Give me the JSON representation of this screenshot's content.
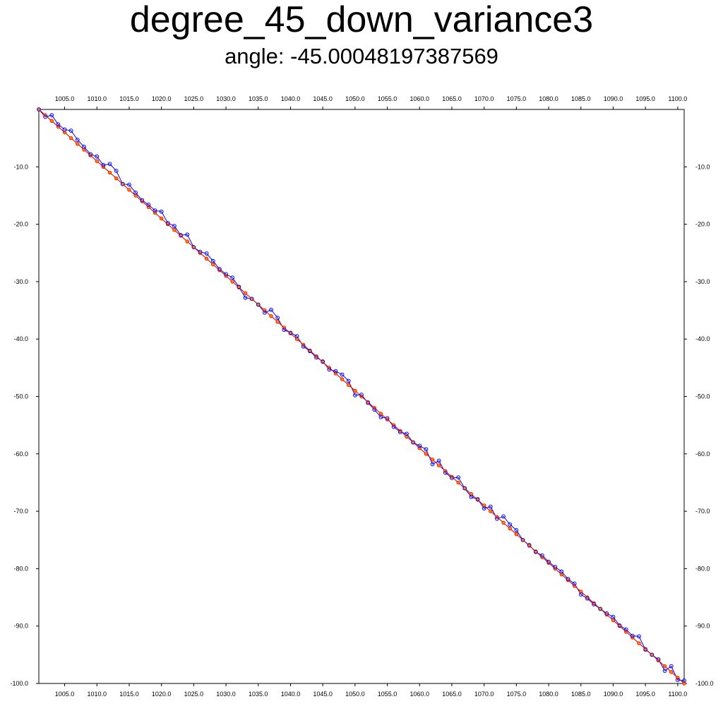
{
  "chart_data": {
    "type": "line",
    "title": "degree_45_down_variance3",
    "subtitle": "angle: -45.00048197387569",
    "xlim": [
      1001,
      1101
    ],
    "ylim": [
      -100,
      0
    ],
    "x_ticks": [
      1005,
      1010,
      1015,
      1020,
      1025,
      1030,
      1035,
      1040,
      1045,
      1050,
      1055,
      1060,
      1065,
      1070,
      1075,
      1080,
      1085,
      1090,
      1095,
      1100
    ],
    "x_tick_labels": [
      "1005.0",
      "1010.0",
      "1015.0",
      "1020.0",
      "1025.0",
      "1030.0",
      "1035.0",
      "1040.0",
      "1045.0",
      "1050.0",
      "1055.0",
      "1060.0",
      "1065.0",
      "1070.0",
      "1075.0",
      "1080.0",
      "1085.0",
      "1090.0",
      "1095.0",
      "1100.0"
    ],
    "y_ticks": [
      -10,
      -20,
      -30,
      -40,
      -50,
      -60,
      -70,
      -80,
      -90,
      -100
    ],
    "y_tick_labels": [
      "-10.0",
      "-20.0",
      "-30.0",
      "-40.0",
      "-50.0",
      "-60.0",
      "-70.0",
      "-80.0",
      "-90.0",
      "-100.0"
    ],
    "grid": false,
    "colors": {
      "noisy": "#0000ff",
      "ideal": "#ff0000",
      "smoothed": "#00aa00",
      "markers_ideal": "#ff8800"
    },
    "x": [
      1001,
      1002,
      1003,
      1004,
      1005,
      1006,
      1007,
      1008,
      1009,
      1010,
      1011,
      1012,
      1013,
      1014,
      1015,
      1016,
      1017,
      1018,
      1019,
      1020,
      1021,
      1022,
      1023,
      1024,
      1025,
      1026,
      1027,
      1028,
      1029,
      1030,
      1031,
      1032,
      1033,
      1034,
      1035,
      1036,
      1037,
      1038,
      1039,
      1040,
      1041,
      1042,
      1043,
      1044,
      1045,
      1046,
      1047,
      1048,
      1049,
      1050,
      1051,
      1052,
      1053,
      1054,
      1055,
      1056,
      1057,
      1058,
      1059,
      1060,
      1061,
      1062,
      1063,
      1064,
      1065,
      1066,
      1067,
      1068,
      1069,
      1070,
      1071,
      1072,
      1073,
      1074,
      1075,
      1076,
      1077,
      1078,
      1079,
      1080,
      1081,
      1082,
      1083,
      1084,
      1085,
      1086,
      1087,
      1088,
      1089,
      1090,
      1091,
      1092,
      1093,
      1094,
      1095,
      1096,
      1097,
      1098,
      1099,
      1100,
      1101
    ],
    "series": [
      {
        "values": [
          0,
          -1.0,
          -2.0,
          -3.0,
          -4.0,
          -5.0,
          -6.0,
          -7.0,
          -8.0,
          -9.0,
          -10.0,
          -11.0,
          -12.0,
          -13.0,
          -14.0,
          -15.0,
          -16.0,
          -17.0,
          -18.0,
          -19.0,
          -20.0,
          -21.0,
          -22.0,
          -23.0,
          -24.0,
          -25.0,
          -26.0,
          -27.0,
          -28.0,
          -29.0,
          -30.0,
          -31.0,
          -32.0,
          -33.0,
          -34.0,
          -35.0,
          -36.0,
          -37.0,
          -38.0,
          -39.0,
          -40.0,
          -41.0,
          -42.0,
          -43.0,
          -44.0,
          -45.0,
          -46.0,
          -47.0,
          -48.0,
          -49.0,
          -50.0,
          -51.0,
          -52.0,
          -53.0,
          -54.0,
          -55.0,
          -56.0,
          -57.0,
          -58.0,
          -59.0,
          -60.0,
          -61.0,
          -62.0,
          -63.0,
          -64.0,
          -65.0,
          -66.0,
          -67.0,
          -68.0,
          -69.0,
          -70.0,
          -71.0,
          -72.0,
          -73.0,
          -74.0,
          -75.0,
          -76.0,
          -77.0,
          -78.0,
          -79.0,
          -80.0,
          -81.0,
          -82.0,
          -83.0,
          -84.0,
          -85.0,
          -86.0,
          -87.0,
          -88.0,
          -89.0,
          -90.0,
          -91.0,
          -92.0,
          -93.0,
          -94.0,
          -95.0,
          -96.0,
          -97.0,
          -98.0,
          -99.0,
          -100.0
        ]
      },
      {
        "values": [
          0,
          -1.3,
          -1.0,
          -2.6,
          -3.5,
          -3.7,
          -5.3,
          -6.5,
          -7.8,
          -8.2,
          -9.7,
          -9.5,
          -10.7,
          -13.0,
          -13.1,
          -14.5,
          -15.8,
          -16.6,
          -17.6,
          -17.8,
          -19.8,
          -20.3,
          -21.9,
          -21.8,
          -24.0,
          -24.8,
          -25.1,
          -26.4,
          -27.8,
          -28.7,
          -29.3,
          -30.9,
          -32.8,
          -33.0,
          -34.0,
          -35.4,
          -34.9,
          -36.3,
          -38.4,
          -38.9,
          -39.5,
          -41.3,
          -42.1,
          -43.2,
          -43.9,
          -45.3,
          -45.6,
          -46.2,
          -47.3,
          -49.8,
          -49.7,
          -51.1,
          -52.3,
          -53.6,
          -53.8,
          -55.3,
          -56.2,
          -56.5,
          -58.0,
          -58.6,
          -59.2,
          -61.8,
          -61.2,
          -63.3,
          -64.2,
          -64.1,
          -66.0,
          -67.5,
          -67.9,
          -69.5,
          -69.2,
          -71.3,
          -70.9,
          -72.3,
          -73.3,
          -75.0,
          -75.9,
          -77.1,
          -77.7,
          -78.8,
          -79.7,
          -80.5,
          -81.8,
          -82.6,
          -84.5,
          -85.2,
          -86.2,
          -87.0,
          -87.8,
          -88.4,
          -89.9,
          -90.6,
          -91.7,
          -91.8,
          -94.1,
          -95.0,
          -95.8,
          -97.8,
          -97.0,
          -99.4,
          -99.5
        ]
      },
      {
        "values": [
          0,
          -1.0,
          -2.0,
          -3.0,
          -4.0,
          -5.0,
          -6.0,
          -7.0,
          -8.0,
          -9.0,
          -10.0,
          -11.0,
          -12.0,
          -13.0,
          -14.0,
          -15.0,
          -16.0,
          -17.0,
          -18.0,
          -19.0,
          -20.0,
          -21.0,
          -22.0,
          -23.0,
          -24.0,
          -25.0,
          -26.0,
          -27.0,
          -28.0,
          -29.0,
          -30.0,
          -31.0,
          -32.0,
          -33.0,
          -34.0,
          -35.0,
          -36.0,
          -37.0,
          -38.0,
          -39.0,
          -40.0,
          -41.0,
          -42.0,
          -43.0,
          -44.0,
          -45.0,
          -46.0,
          -47.0,
          -48.0,
          -49.0,
          -50.0,
          -51.0,
          -52.0,
          -53.0,
          -54.0,
          -55.0,
          -56.0,
          -57.0,
          -58.0,
          -59.0,
          -60.0,
          -61.0,
          -62.0,
          -63.0,
          -64.0,
          -65.0,
          -66.0,
          -67.0,
          -68.0,
          -69.0,
          -70.0,
          -71.0,
          -72.0,
          -73.0,
          -74.0,
          -75.0,
          -76.0,
          -77.0,
          -78.0,
          -79.0,
          -80.0,
          -81.0,
          -82.0,
          -83.0,
          -84.0,
          -85.0,
          -86.0,
          -87.0,
          -88.0,
          -89.0,
          -90.0,
          -91.0,
          -92.0,
          -93.0,
          -94.0,
          -95.0,
          -96.0,
          -97.0,
          -98.0,
          -99.0,
          -100.0
        ]
      }
    ]
  }
}
